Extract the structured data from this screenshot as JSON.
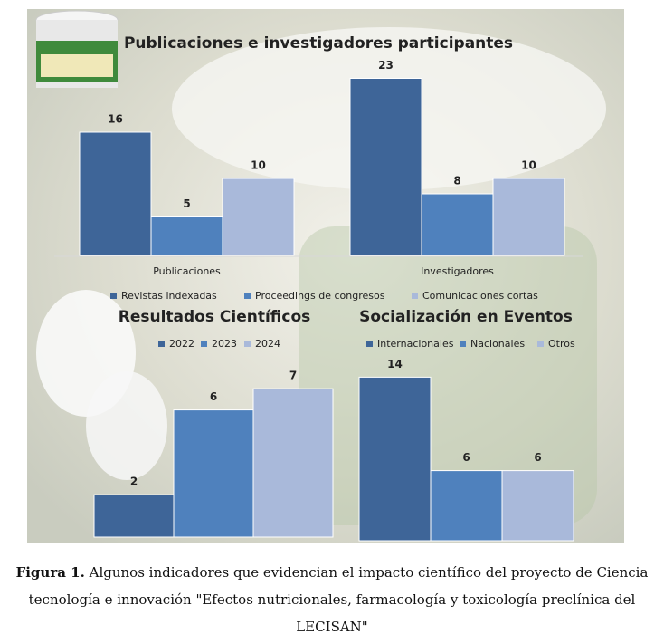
{
  "chart_data": [
    {
      "type": "bar",
      "title": "Publicaciones e investigadores participantes",
      "categories": [
        "Publicaciones",
        "Investigadores"
      ],
      "series": [
        {
          "name": "Revistas indexadas",
          "color": "#3e6598",
          "values": [
            16,
            23
          ]
        },
        {
          "name": "Proceedings de congresos",
          "color": "#4f81bd",
          "values": [
            5,
            8
          ]
        },
        {
          "name": "Comunicaciones cortas",
          "color": "#a9b9da",
          "values": [
            10,
            10
          ]
        }
      ]
    },
    {
      "type": "bar",
      "title": "Resultados Científicos",
      "categories": [
        null
      ],
      "series": [
        {
          "name": "2022",
          "color": "#3e6598",
          "values": [
            2
          ]
        },
        {
          "name": "2023",
          "color": "#4f81bd",
          "values": [
            6
          ]
        },
        {
          "name": "2024",
          "color": "#a9b9da",
          "values": [
            7
          ]
        }
      ]
    },
    {
      "type": "bar",
      "title": "Socialización en Eventos",
      "categories": [
        null
      ],
      "series": [
        {
          "name": "Internacionales",
          "color": "#3e6598",
          "values": [
            14
          ]
        },
        {
          "name": "Nacionales",
          "color": "#4f81bd",
          "values": [
            6
          ]
        },
        {
          "name": "Otros",
          "color": "#a9b9da",
          "values": [
            6
          ]
        }
      ]
    }
  ],
  "caption": {
    "label": "Figura 1.",
    "text": "Algunos indicadores que evidencian el impacto científico del proyecto de Ciencia tecnología e innovación \"Efectos nutricionales, farmacología y toxicología preclínica del LECISAN\""
  }
}
